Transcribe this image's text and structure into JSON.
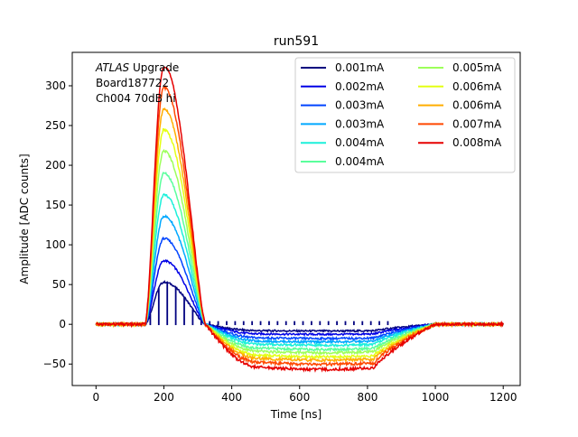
{
  "chart_data": {
    "type": "line",
    "title": "run591",
    "xlabel": "Time [ns]",
    "ylabel": "Amplitude [ADC counts]",
    "xlim": [
      -70,
      1250
    ],
    "ylim": [
      -77,
      342
    ],
    "xticks": [
      0,
      200,
      400,
      600,
      800,
      1000,
      1200
    ],
    "yticks": [
      -50,
      0,
      50,
      100,
      150,
      200,
      250,
      300
    ],
    "grid": false,
    "legend_placement": "top-right",
    "legend_columns": 2,
    "annotation": {
      "lines": [
        "ATLAS Upgrade",
        "Board187722",
        "Ch004 70dB hi"
      ],
      "italic_word": "ATLAS"
    },
    "pulse_shape": {
      "baseline_end_ns": 145,
      "peak_ns": 200,
      "zero_cross_ns": 322,
      "undershoot_reached_ns": 480,
      "recovery_start_ns": 820,
      "recovery_end_ns": 1000,
      "x_end_ns": 1200
    },
    "series": [
      {
        "name": "0.001mA",
        "color": "#00007f",
        "peak": 53,
        "undershoot": -8
      },
      {
        "name": "0.002mA",
        "color": "#0000e6",
        "peak": 80,
        "undershoot": -12
      },
      {
        "name": "0.003mA",
        "color": "#0044ff",
        "peak": 108,
        "undershoot": -17
      },
      {
        "name": "0.003mA",
        "color": "#00a8ff",
        "peak": 136,
        "undershoot": -21
      },
      {
        "name": "0.004mA",
        "color": "#1cf0da",
        "peak": 163,
        "undershoot": -25
      },
      {
        "name": "0.004mA",
        "color": "#5aff9c",
        "peak": 190,
        "undershoot": -30
      },
      {
        "name": "0.005mA",
        "color": "#9cff5a",
        "peak": 218,
        "undershoot": -34
      },
      {
        "name": "0.006mA",
        "color": "#e4ff13",
        "peak": 245,
        "undershoot": -39
      },
      {
        "name": "0.006mA",
        "color": "#ffae00",
        "peak": 271,
        "undershoot": -43
      },
      {
        "name": "0.007mA",
        "color": "#ff4800",
        "peak": 298,
        "undershoot": -48
      },
      {
        "name": "0.008mA",
        "color": "#e60000",
        "peak": 325,
        "undershoot": -54
      }
    ],
    "spikes": {
      "series_index": 0,
      "start_ns": 160,
      "step_ns": 25,
      "end_ns": 875,
      "bottom": -1
    }
  }
}
